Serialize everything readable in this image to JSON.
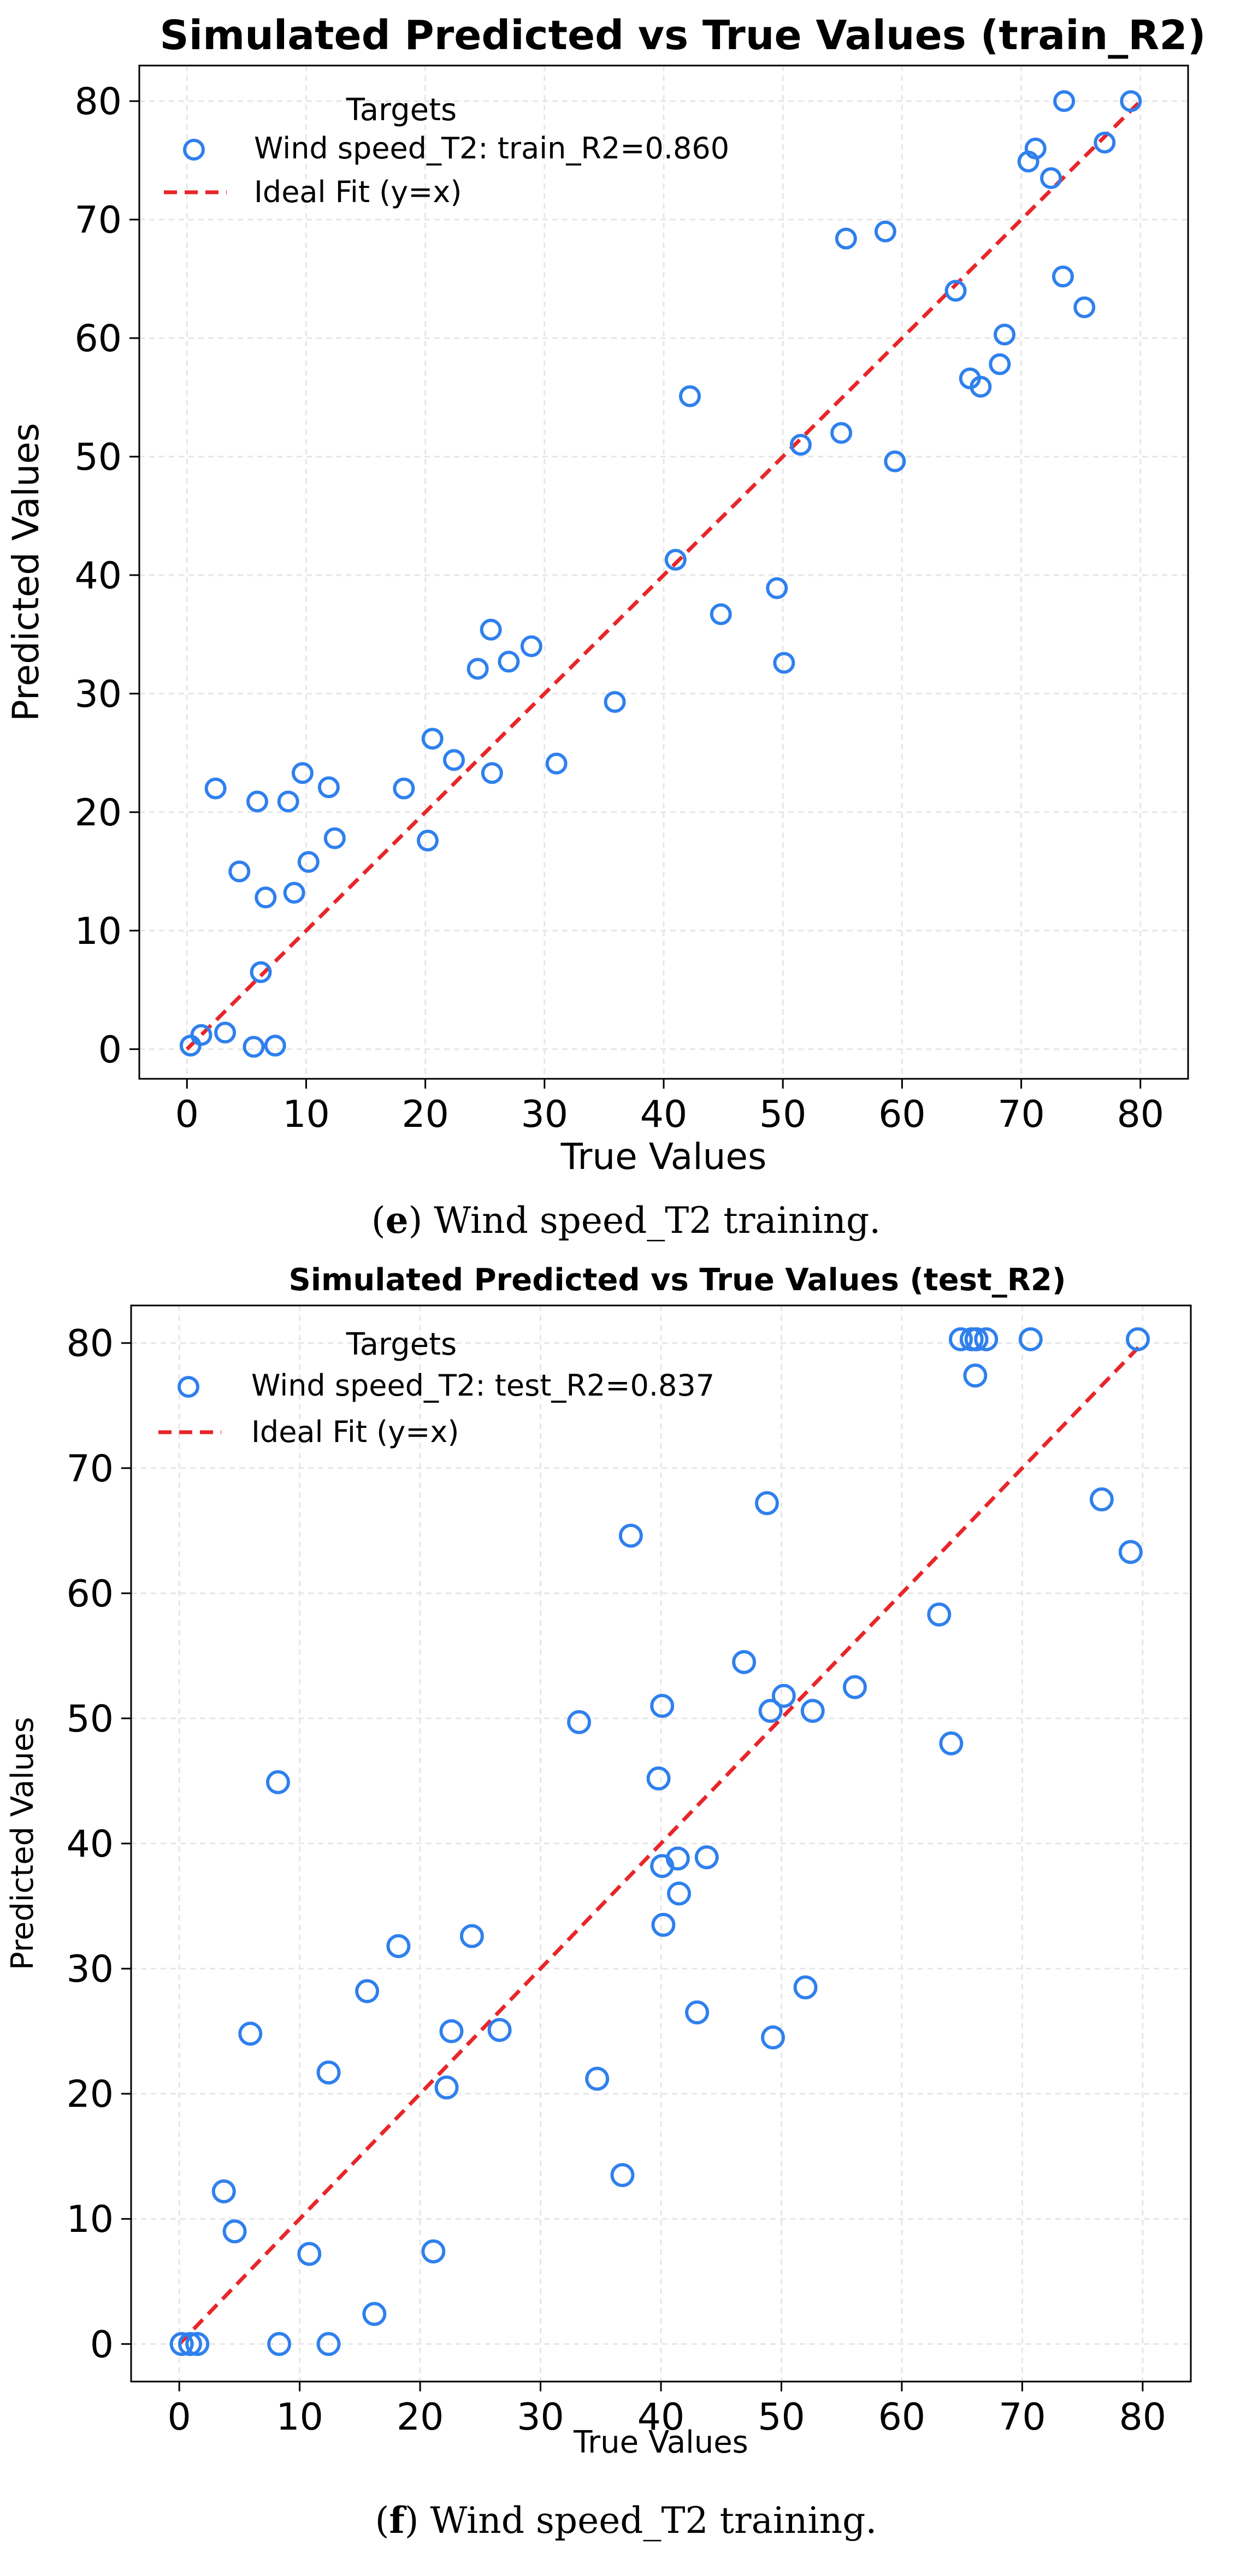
{
  "colors": {
    "marker": "#2f80ed",
    "fit": "#e8262a",
    "grid": "#e6e6e6"
  },
  "chart_data": [
    {
      "type": "scatter",
      "title": "Simulated Predicted vs True Values (train_R2)",
      "xlabel": "True Values",
      "ylabel": "Predicted Values",
      "xlim": [
        -4,
        84
      ],
      "ylim": [
        -2.5,
        83
      ],
      "xticks": [
        0,
        10,
        20,
        30,
        40,
        50,
        60,
        70,
        80
      ],
      "yticks": [
        0,
        10,
        20,
        30,
        40,
        50,
        60,
        70,
        80
      ],
      "grid": true,
      "legend_title": "Targets",
      "legend_position": "upper-left",
      "series": [
        {
          "name": "Wind speed_T2: train_R2=0.860",
          "points": [
            [
              0.3,
              0.3
            ],
            [
              1.2,
              1.2
            ],
            [
              3.2,
              1.4
            ],
            [
              2.4,
              22.0
            ],
            [
              4.4,
              15.0
            ],
            [
              5.6,
              0.2
            ],
            [
              5.9,
              20.9
            ],
            [
              6.2,
              6.5
            ],
            [
              6.6,
              12.8
            ],
            [
              7.4,
              0.3
            ],
            [
              8.5,
              20.9
            ],
            [
              9.0,
              13.2
            ],
            [
              9.7,
              23.3
            ],
            [
              10.2,
              15.8
            ],
            [
              11.9,
              22.1
            ],
            [
              12.4,
              17.8
            ],
            [
              18.2,
              22.0
            ],
            [
              20.2,
              17.6
            ],
            [
              20.6,
              26.2
            ],
            [
              22.4,
              24.4
            ],
            [
              24.4,
              32.1
            ],
            [
              25.5,
              35.4
            ],
            [
              25.6,
              23.3
            ],
            [
              27.0,
              32.7
            ],
            [
              28.9,
              34.0
            ],
            [
              31.0,
              24.1
            ],
            [
              35.9,
              29.3
            ],
            [
              41.0,
              41.3
            ],
            [
              42.2,
              55.1
            ],
            [
              44.8,
              36.7
            ],
            [
              49.5,
              38.9
            ],
            [
              50.1,
              32.6
            ],
            [
              51.5,
              51.0
            ],
            [
              54.9,
              52.0
            ],
            [
              55.3,
              68.4
            ],
            [
              58.6,
              69.0
            ],
            [
              59.4,
              49.6
            ],
            [
              64.5,
              64.0
            ],
            [
              65.7,
              56.6
            ],
            [
              66.6,
              55.9
            ],
            [
              68.2,
              57.8
            ],
            [
              68.6,
              60.3
            ],
            [
              70.6,
              74.9
            ],
            [
              71.2,
              76.0
            ],
            [
              72.5,
              73.5
            ],
            [
              73.6,
              80.0
            ],
            [
              73.5,
              65.2
            ],
            [
              75.3,
              62.6
            ],
            [
              77.0,
              76.5
            ],
            [
              79.2,
              80.0
            ]
          ]
        }
      ],
      "reference_line": {
        "name": "Ideal Fit (y=x)",
        "from": [
          0,
          0
        ],
        "to": [
          80,
          80
        ]
      }
    },
    {
      "type": "scatter",
      "title": "Simulated Predicted vs True Values (test_R2)",
      "xlabel": "True Values",
      "ylabel": "Predicted Values",
      "xlim": [
        -4,
        84
      ],
      "ylim": [
        -3,
        83
      ],
      "xticks": [
        0,
        10,
        20,
        30,
        40,
        50,
        60,
        70,
        80
      ],
      "yticks": [
        0,
        10,
        20,
        30,
        40,
        50,
        60,
        70,
        80
      ],
      "grid": true,
      "legend_title": "Targets",
      "legend_position": "upper-left",
      "series": [
        {
          "name": "Wind speed_T2: test_R2=0.837",
          "points": [
            [
              0.2,
              0.0
            ],
            [
              0.9,
              0.0
            ],
            [
              1.5,
              0.0
            ],
            [
              3.7,
              12.2
            ],
            [
              4.6,
              9.0
            ],
            [
              5.9,
              24.8
            ],
            [
              8.2,
              44.9
            ],
            [
              8.3,
              0.0
            ],
            [
              10.8,
              7.2
            ],
            [
              12.4,
              21.7
            ],
            [
              12.4,
              0.0
            ],
            [
              15.6,
              28.2
            ],
            [
              16.2,
              2.4
            ],
            [
              18.2,
              31.8
            ],
            [
              21.1,
              7.4
            ],
            [
              22.2,
              20.5
            ],
            [
              22.6,
              25.0
            ],
            [
              24.3,
              32.6
            ],
            [
              26.6,
              25.1
            ],
            [
              33.2,
              49.7
            ],
            [
              34.7,
              21.2
            ],
            [
              36.8,
              13.5
            ],
            [
              37.5,
              64.6
            ],
            [
              39.8,
              45.2
            ],
            [
              40.1,
              51.0
            ],
            [
              40.1,
              38.2
            ],
            [
              40.2,
              33.5
            ],
            [
              41.4,
              38.8
            ],
            [
              41.5,
              36.0
            ],
            [
              43.0,
              26.5
            ],
            [
              43.8,
              38.9
            ],
            [
              46.9,
              54.5
            ],
            [
              48.8,
              67.2
            ],
            [
              49.1,
              50.6
            ],
            [
              49.3,
              24.5
            ],
            [
              50.2,
              51.8
            ],
            [
              52.0,
              28.5
            ],
            [
              52.6,
              50.6
            ],
            [
              56.1,
              52.5
            ],
            [
              63.1,
              58.3
            ],
            [
              64.1,
              48.0
            ],
            [
              64.9,
              80.3
            ],
            [
              65.8,
              80.3
            ],
            [
              66.1,
              77.4
            ],
            [
              66.2,
              80.3
            ],
            [
              67.0,
              80.3
            ],
            [
              70.7,
              80.3
            ],
            [
              76.6,
              67.5
            ],
            [
              79.0,
              63.3
            ],
            [
              79.6,
              80.3
            ]
          ]
        }
      ],
      "reference_line": {
        "name": "Ideal Fit (y=x)",
        "from": [
          0,
          0
        ],
        "to": [
          80,
          80
        ]
      }
    }
  ],
  "captions": [
    {
      "letter": "e",
      "text": " Wind speed_T2 training."
    },
    {
      "letter": "f",
      "text": " Wind speed_T2 training."
    }
  ]
}
